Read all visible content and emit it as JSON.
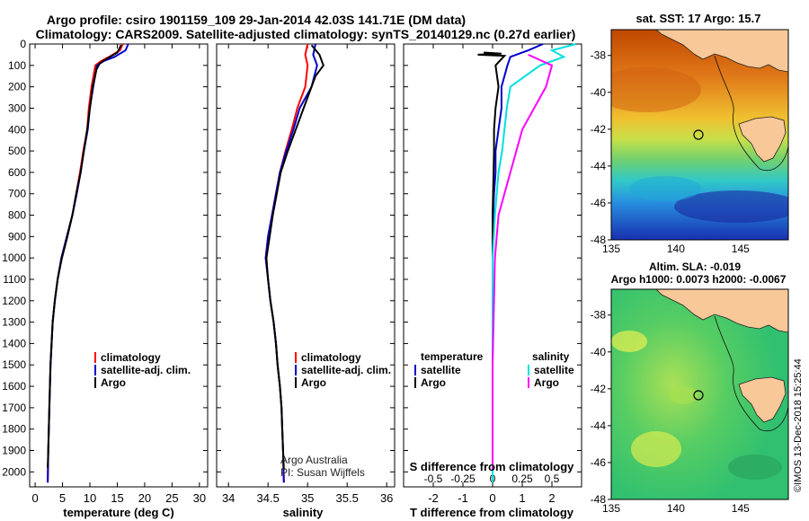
{
  "header": {
    "title_line1": "Argo profile: csiro 1901159_109 29-Jan-2014 42.03S 141.71E (DM data)",
    "title_line2": "Climatology: CARS2009. Satellite-adjusted climatology: synTS_20140129.nc (0.27d earlier)"
  },
  "colors": {
    "argo": "#000000",
    "climatology": "#ff0000",
    "satellite": "#0000cc",
    "sal_sat": "#00e0e0",
    "sal_argo": "#ff00ff"
  },
  "chart_data": [
    {
      "type": "line",
      "xlabel": "temperature (deg C)",
      "ylabel": "",
      "xlim": [
        -1,
        31.5
      ],
      "ylim": [
        2070,
        0
      ],
      "xticks": [
        "0",
        "5",
        "10",
        "15",
        "20",
        "25",
        "30"
      ],
      "yticks": [
        "0",
        "100",
        "200",
        "300",
        "400",
        "500",
        "600",
        "700",
        "800",
        "900",
        "1000",
        "1100",
        "1200",
        "1300",
        "1400",
        "1500",
        "1600",
        "1700",
        "1800",
        "1900",
        "2000"
      ],
      "legend": {
        "placement": "lower-right",
        "entries": [
          "climatology",
          "satellite-adj. clim.",
          "Argo"
        ]
      },
      "series": [
        {
          "name": "climatology",
          "points": [
            [
              16,
              0
            ],
            [
              15.5,
              30
            ],
            [
              13.5,
              60
            ],
            [
              12,
              80
            ],
            [
              11,
              100
            ],
            [
              10.3,
              200
            ],
            [
              9.8,
              300
            ],
            [
              9.5,
              400
            ],
            [
              8.8,
              500
            ],
            [
              8.2,
              600
            ],
            [
              7.5,
              700
            ],
            [
              6.8,
              800
            ],
            [
              5.8,
              900
            ],
            [
              4.8,
              1000
            ],
            [
              4.1,
              1100
            ],
            [
              3.6,
              1200
            ],
            [
              3.2,
              1300
            ],
            [
              3.0,
              1400
            ],
            [
              2.8,
              1500
            ],
            [
              2.6,
              1700
            ],
            [
              2.4,
              1900
            ],
            [
              2.3,
              2050
            ]
          ]
        },
        {
          "name": "satellite-adj. clim.",
          "points": [
            [
              17,
              0
            ],
            [
              16.5,
              30
            ],
            [
              14.5,
              60
            ],
            [
              12.5,
              80
            ],
            [
              11.3,
              100
            ],
            [
              10.6,
              200
            ],
            [
              10.0,
              300
            ],
            [
              9.6,
              400
            ],
            [
              8.9,
              500
            ],
            [
              8.3,
              600
            ],
            [
              7.6,
              700
            ],
            [
              6.8,
              800
            ],
            [
              5.8,
              900
            ],
            [
              4.8,
              1000
            ],
            [
              4.1,
              1100
            ],
            [
              3.6,
              1200
            ],
            [
              3.2,
              1300
            ],
            [
              3.0,
              1400
            ],
            [
              2.8,
              1500
            ],
            [
              2.6,
              1700
            ],
            [
              2.4,
              1900
            ],
            [
              2.3,
              2050
            ]
          ]
        },
        {
          "name": "Argo",
          "points": [
            [
              15.7,
              5
            ],
            [
              15,
              40
            ],
            [
              13,
              70
            ],
            [
              11.8,
              90
            ],
            [
              11.2,
              120
            ],
            [
              10.5,
              200
            ],
            [
              10,
              300
            ],
            [
              9.5,
              400
            ],
            [
              8.9,
              500
            ],
            [
              8.3,
              600
            ],
            [
              7.5,
              700
            ],
            [
              6.8,
              800
            ],
            [
              5.9,
              900
            ],
            [
              4.9,
              1000
            ],
            [
              4.1,
              1100
            ],
            [
              3.6,
              1200
            ],
            [
              3.2,
              1300
            ],
            [
              3.0,
              1400
            ],
            [
              2.8,
              1500
            ],
            [
              2.6,
              1700
            ],
            [
              2.4,
              1900
            ],
            [
              2.3,
              1980
            ]
          ]
        }
      ]
    },
    {
      "type": "line",
      "xlabel": "salinity",
      "xlim": [
        33.85,
        36.1
      ],
      "ylim": [
        2070,
        0
      ],
      "xticks": [
        "34",
        "34.5",
        "35",
        "35.5",
        "36"
      ],
      "legend": {
        "placement": "lower-right",
        "entries": [
          "climatology",
          "satellite-adj. clim.",
          "Argo"
        ]
      },
      "annotation": [
        "Argo Australia",
        "PI: Susan Wijffels"
      ],
      "series": [
        {
          "name": "climatology",
          "points": [
            [
              35.0,
              0
            ],
            [
              34.97,
              50
            ],
            [
              35.0,
              100
            ],
            [
              34.97,
              200
            ],
            [
              34.87,
              300
            ],
            [
              34.8,
              400
            ],
            [
              34.72,
              500
            ],
            [
              34.65,
              600
            ],
            [
              34.6,
              700
            ],
            [
              34.55,
              800
            ],
            [
              34.5,
              900
            ],
            [
              34.47,
              1000
            ],
            [
              34.5,
              1100
            ],
            [
              34.53,
              1200
            ],
            [
              34.57,
              1300
            ],
            [
              34.6,
              1400
            ],
            [
              34.62,
              1500
            ],
            [
              34.65,
              1600
            ],
            [
              34.67,
              1700
            ],
            [
              34.68,
              1800
            ],
            [
              34.69,
              1900
            ],
            [
              34.7,
              2050
            ]
          ]
        },
        {
          "name": "satellite-adj. clim.",
          "points": [
            [
              35.1,
              0
            ],
            [
              35.07,
              50
            ],
            [
              35.12,
              100
            ],
            [
              35.05,
              200
            ],
            [
              34.9,
              300
            ],
            [
              34.82,
              400
            ],
            [
              34.73,
              500
            ],
            [
              34.65,
              600
            ],
            [
              34.6,
              700
            ],
            [
              34.55,
              800
            ],
            [
              34.5,
              900
            ],
            [
              34.47,
              1000
            ],
            [
              34.5,
              1100
            ],
            [
              34.53,
              1200
            ],
            [
              34.57,
              1300
            ],
            [
              34.6,
              1400
            ],
            [
              34.62,
              1500
            ],
            [
              34.65,
              1600
            ],
            [
              34.67,
              1700
            ],
            [
              34.68,
              1800
            ],
            [
              34.69,
              1900
            ],
            [
              34.7,
              2050
            ]
          ]
        },
        {
          "name": "Argo",
          "points": [
            [
              35.05,
              5
            ],
            [
              35.15,
              50
            ],
            [
              35.2,
              100
            ],
            [
              35.1,
              150
            ],
            [
              35.05,
              200
            ],
            [
              34.95,
              300
            ],
            [
              34.85,
              400
            ],
            [
              34.75,
              500
            ],
            [
              34.66,
              600
            ],
            [
              34.61,
              700
            ],
            [
              34.56,
              800
            ],
            [
              34.52,
              900
            ],
            [
              34.48,
              1000
            ],
            [
              34.5,
              1100
            ],
            [
              34.53,
              1200
            ],
            [
              34.57,
              1300
            ],
            [
              34.6,
              1400
            ],
            [
              34.62,
              1500
            ],
            [
              34.65,
              1600
            ],
            [
              34.67,
              1700
            ],
            [
              34.68,
              1800
            ],
            [
              34.69,
              1900
            ],
            [
              34.7,
              1990
            ]
          ]
        }
      ]
    },
    {
      "type": "line",
      "xlabel": "T difference from climatology",
      "xlabel_top": "S difference from climatology",
      "xlim": [
        -3,
        3
      ],
      "ylim": [
        2070,
        0
      ],
      "xticks": [
        "-2",
        "-1",
        "0",
        "1",
        "2"
      ],
      "xticks_s": [
        "-0.5",
        "-0.25",
        "0",
        "0.25",
        "0.5"
      ],
      "legend": {
        "placement": "lower-center",
        "temperature_title": "temperature",
        "temperature_entries": [
          "satellite",
          "Argo"
        ],
        "salinity_title": "salinity",
        "salinity_entries": [
          "satellite",
          "Argo"
        ]
      },
      "series": [
        {
          "name": "temperature satellite",
          "points": [
            [
              1.7,
              0
            ],
            [
              1.2,
              30
            ],
            [
              0.6,
              60
            ],
            [
              0.5,
              100
            ],
            [
              0.3,
              200
            ],
            [
              0.3,
              300
            ],
            [
              0.2,
              400
            ],
            [
              0.1,
              500
            ],
            [
              0.1,
              600
            ],
            [
              0.05,
              700
            ],
            [
              0.02,
              800
            ],
            [
              0,
              1000
            ],
            [
              0,
              1500
            ],
            [
              0,
              2050
            ]
          ]
        },
        {
          "name": "temperature Argo",
          "points": [
            [
              -0.3,
              40
            ],
            [
              0.3,
              45
            ],
            [
              -0.5,
              50
            ],
            [
              0.4,
              55
            ],
            [
              0.1,
              100
            ],
            [
              0.2,
              200
            ],
            [
              0.1,
              300
            ],
            [
              0.05,
              400
            ],
            [
              0.05,
              500
            ],
            [
              0,
              800
            ],
            [
              0,
              1100
            ],
            [
              0,
              1500
            ],
            [
              0,
              1990
            ]
          ]
        },
        {
          "name": "salinity satellite",
          "points": [
            [
              0.7,
              0
            ],
            [
              0.5,
              30
            ],
            [
              0.6,
              60
            ],
            [
              0.4,
              100
            ],
            [
              0.15,
              200
            ],
            [
              0.12,
              300
            ],
            [
              0.1,
              400
            ],
            [
              0.08,
              500
            ],
            [
              0.05,
              600
            ],
            [
              0.02,
              800
            ],
            [
              0,
              1000
            ],
            [
              0,
              2050
            ]
          ]
        },
        {
          "name": "salinity Argo",
          "points": [
            [
              0.3,
              50
            ],
            [
              0.5,
              100
            ],
            [
              0.45,
              200
            ],
            [
              0.35,
              300
            ],
            [
              0.25,
              400
            ],
            [
              0.2,
              500
            ],
            [
              0.15,
              600
            ],
            [
              0.1,
              700
            ],
            [
              0.05,
              800
            ],
            [
              0.02,
              1000
            ],
            [
              0,
              1500
            ],
            [
              0,
              1990
            ]
          ]
        }
      ]
    }
  ],
  "maps": {
    "top": {
      "title": "sat. SST: 17 Argo: 15.7",
      "xticks": [
        "135",
        "140",
        "145"
      ],
      "yticks": [
        "-38",
        "-40",
        "-42",
        "-44",
        "-46",
        "-48"
      ]
    },
    "bottom": {
      "title_line1": "Altim. SLA: -0.019",
      "title_line2": "Argo h1000: 0.0073 h2000: -0.0067",
      "xticks": [
        "135",
        "140",
        "145"
      ],
      "yticks": [
        "-38",
        "-40",
        "-42",
        "-44",
        "-46",
        "-48"
      ]
    },
    "profile_location": {
      "lon": 141.71,
      "lat": -42.03
    }
  },
  "footer": {
    "credit": "©IMOS 13-Dec-2018 15:25:44"
  }
}
